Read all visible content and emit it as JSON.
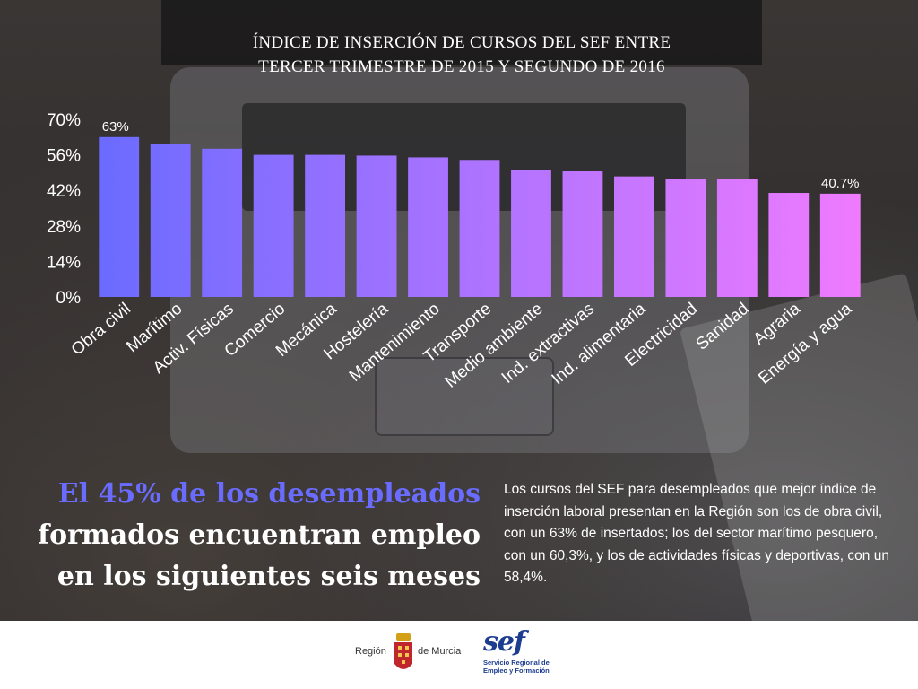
{
  "title": {
    "line1": "ÍNDICE DE INSERCIÓN DE CURSOS DEL SEF ENTRE",
    "line2": "TERCER TRIMESTRE DE 2015 Y SEGUNDO DE 2016"
  },
  "chart_data": {
    "type": "bar",
    "categories": [
      "Obra civil",
      "Marítimo",
      "Activ. Físicas",
      "Comercio",
      "Mecánica",
      "Hostelería",
      "Mantenimiento",
      "Transporte",
      "Medio ambiente",
      "Ind. extractivas",
      "Ind. alimentaria",
      "Electricidad",
      "Sanidad",
      "Agraria",
      "Energía y agua"
    ],
    "values": [
      63,
      60.3,
      58.4,
      56,
      56,
      55.7,
      55,
      54,
      50,
      49.5,
      47.5,
      46.5,
      46.5,
      41,
      40.7
    ],
    "data_labels": [
      "63%",
      "",
      "",
      "",
      "",
      "",
      "",
      "",
      "",
      "",
      "",
      "",
      "",
      "",
      "40.7%"
    ],
    "yticks": [
      "0%",
      "14%",
      "28%",
      "42%",
      "56%",
      "70%"
    ],
    "ytick_values": [
      0,
      14,
      28,
      42,
      56,
      70
    ],
    "ylim": [
      0,
      70
    ],
    "grid": false,
    "legend": "none",
    "colors": {
      "start": "#6a6bff",
      "end": "#f07bff"
    }
  },
  "headline": {
    "line1": "El 45% de los desempleados",
    "line2": "formados encuentran empleo",
    "line3": "en los siguientes seis meses",
    "accent_color": "#6a6cff"
  },
  "body_text": "Los cursos del SEF para desempleados que mejor índice de inserción laboral presentan en la Región son los de obra civil, con un 63% de insertados; los del sector marítimo pesquero, con un 60,3%, y los de actividades físicas y deportivas, con un 58,4%.",
  "footer": {
    "murcia_left": "Región",
    "murcia_right": "de Murcia",
    "sef_word": "sef",
    "sef_line1": "Servicio Regional de",
    "sef_line2": "Empleo y Formación"
  }
}
